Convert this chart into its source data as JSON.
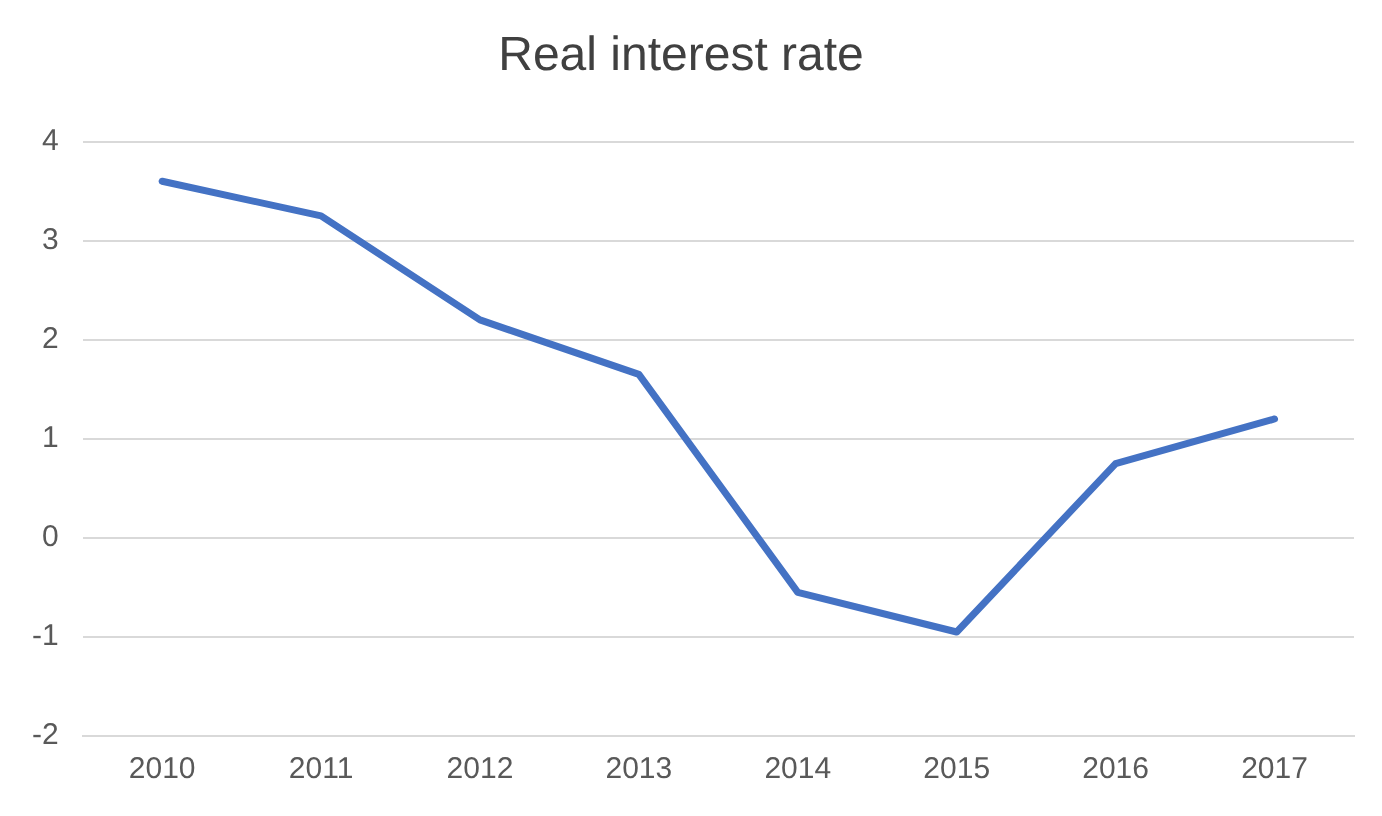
{
  "chart_data": {
    "type": "line",
    "title": "Real interest rate",
    "categories": [
      "2010",
      "2011",
      "2012",
      "2013",
      "2014",
      "2015",
      "2016",
      "2017"
    ],
    "series": [
      {
        "color": "#4472c4",
        "values": [
          3.6,
          3.25,
          2.2,
          1.65,
          -0.55,
          -0.95,
          0.75,
          1.2
        ]
      }
    ],
    "ylim": [
      -2,
      4
    ],
    "yticks": [
      -2,
      -1,
      0,
      1,
      2,
      3,
      4
    ],
    "grid": "y",
    "legend": false,
    "marker": "none",
    "line_style": "solid"
  }
}
